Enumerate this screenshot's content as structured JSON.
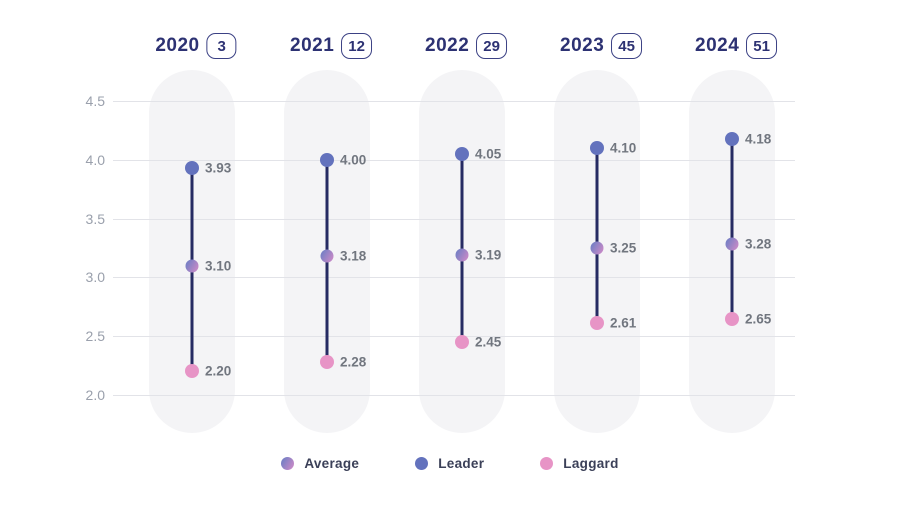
{
  "chart_data": {
    "type": "dumbbell",
    "title": "",
    "categories": [
      "2020",
      "2021",
      "2022",
      "2023",
      "2024"
    ],
    "category_counts": [
      "3",
      "12",
      "29",
      "45",
      "51"
    ],
    "series": [
      {
        "name": "Leader",
        "values": [
          3.93,
          4.0,
          4.05,
          4.1,
          4.18
        ],
        "labels": [
          "3.93",
          "4.00",
          "4.05",
          "4.10",
          "4.18"
        ]
      },
      {
        "name": "Average",
        "values": [
          3.1,
          3.18,
          3.19,
          3.25,
          3.28
        ],
        "labels": [
          "3.10",
          "3.18",
          "3.19",
          "3.25",
          "3.28"
        ]
      },
      {
        "name": "Laggard",
        "values": [
          2.2,
          2.28,
          2.45,
          2.61,
          2.65
        ],
        "labels": [
          "2.20",
          "2.28",
          "2.45",
          "2.61",
          "2.65"
        ]
      }
    ],
    "y_ticks": [
      4.5,
      4.0,
      3.5,
      3.0,
      2.5,
      2.0
    ],
    "y_tick_labels": [
      "4.5",
      "4.0",
      "3.5",
      "3.0",
      "2.5",
      "2.0"
    ],
    "ylim": [
      2.0,
      4.5
    ],
    "grid": true,
    "legend_position": "bottom"
  },
  "legend": {
    "items": [
      {
        "label": "Average",
        "key": "average"
      },
      {
        "label": "Leader",
        "key": "leader"
      },
      {
        "label": "Laggard",
        "key": "laggard"
      }
    ]
  },
  "colors": {
    "leader": "#6372bd",
    "average_gradient_start": "#7b80c5",
    "average_gradient_end": "#c489c7",
    "laggard": "#e794c6",
    "connector_line": "#262b63",
    "header_text": "#2d3273",
    "value_label": "#71767f",
    "axis_label": "#9aa0ac",
    "gridline": "#e2e3e8",
    "column_background": "#f4f4f6",
    "legend_text": "#3b4058"
  }
}
